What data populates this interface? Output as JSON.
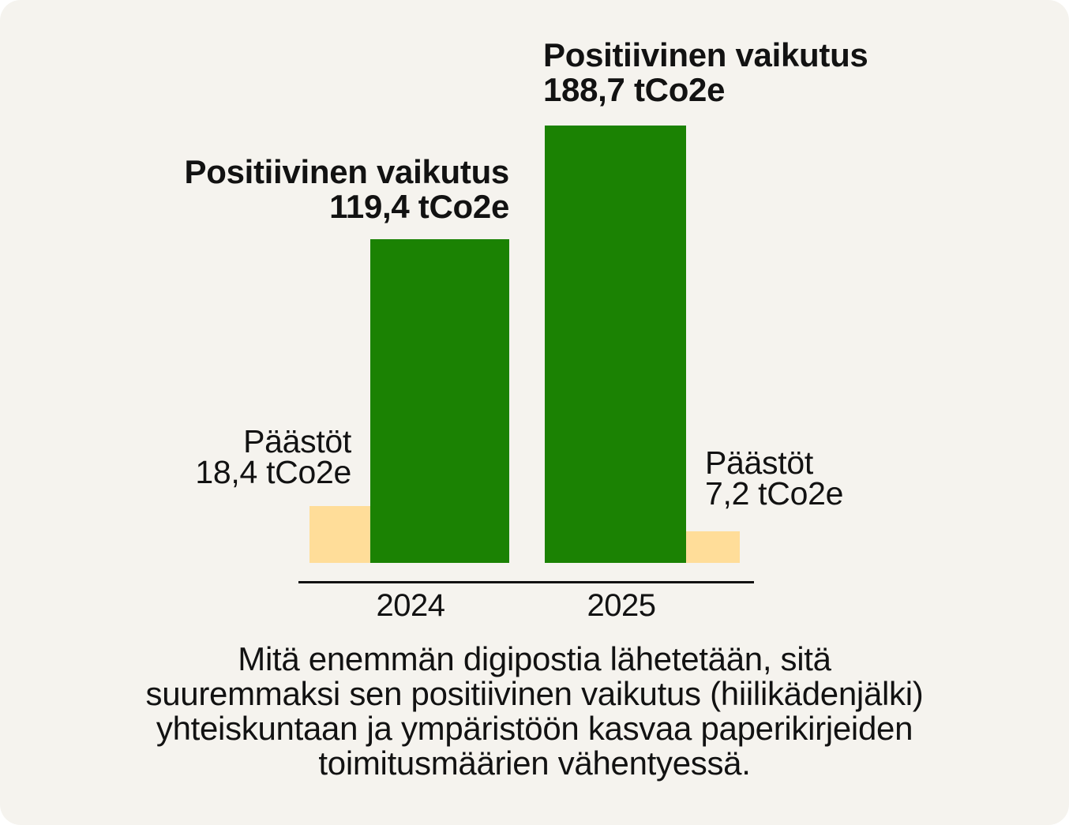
{
  "colors": {
    "page_bg": "#F5F3EE",
    "green": "#1B8203",
    "yellow": "#FFDD99",
    "text": "#121212",
    "axis": "#121212"
  },
  "chart_data": {
    "type": "bar",
    "title": "",
    "categories": [
      "2024",
      "2025"
    ],
    "series": [
      {
        "name": "Päästöt",
        "values": [
          18.4,
          7.2
        ],
        "unit": "tCo2e",
        "color": "#FFDD99"
      },
      {
        "name": "Positiivinen vaikutus",
        "values": [
          119.4,
          188.7
        ],
        "unit": "tCo2e",
        "color": "#1B8203"
      }
    ],
    "legend_position": "none",
    "grid": false,
    "value_labels_as_annotations": true
  },
  "annotations": {
    "impact_2025": {
      "title": "Positiivinen vaikutus",
      "value": "188,7 tCo2e"
    },
    "impact_2024": {
      "title": "Positiivinen vaikutus",
      "value": "119,4 tCo2e"
    },
    "emissions_2024": {
      "title": "Päästöt",
      "value": "18,4 tCo2e"
    },
    "emissions_2025": {
      "title": "Päästöt",
      "value": "7,2 tCo2e"
    }
  },
  "caption": {
    "lines": [
      "Mitä enemmän digipostia lähetetään, sitä",
      "suuremmaksi sen positiivinen vaikutus (hiilikädenjälki)",
      "yhteiskuntaan ja ympäristöön kasvaa paperikirjeiden",
      "toimitusmäärien vähentyessä."
    ],
    "text": "Mitä enemmän digipostia lähetetään, sitä suuremmaksi sen positiivinen vaikutus (hiilikädenjälki) yhteiskuntaan ja ympäristöön kasvaa paperikirjeiden toimitusmäärien vähentyessä."
  }
}
